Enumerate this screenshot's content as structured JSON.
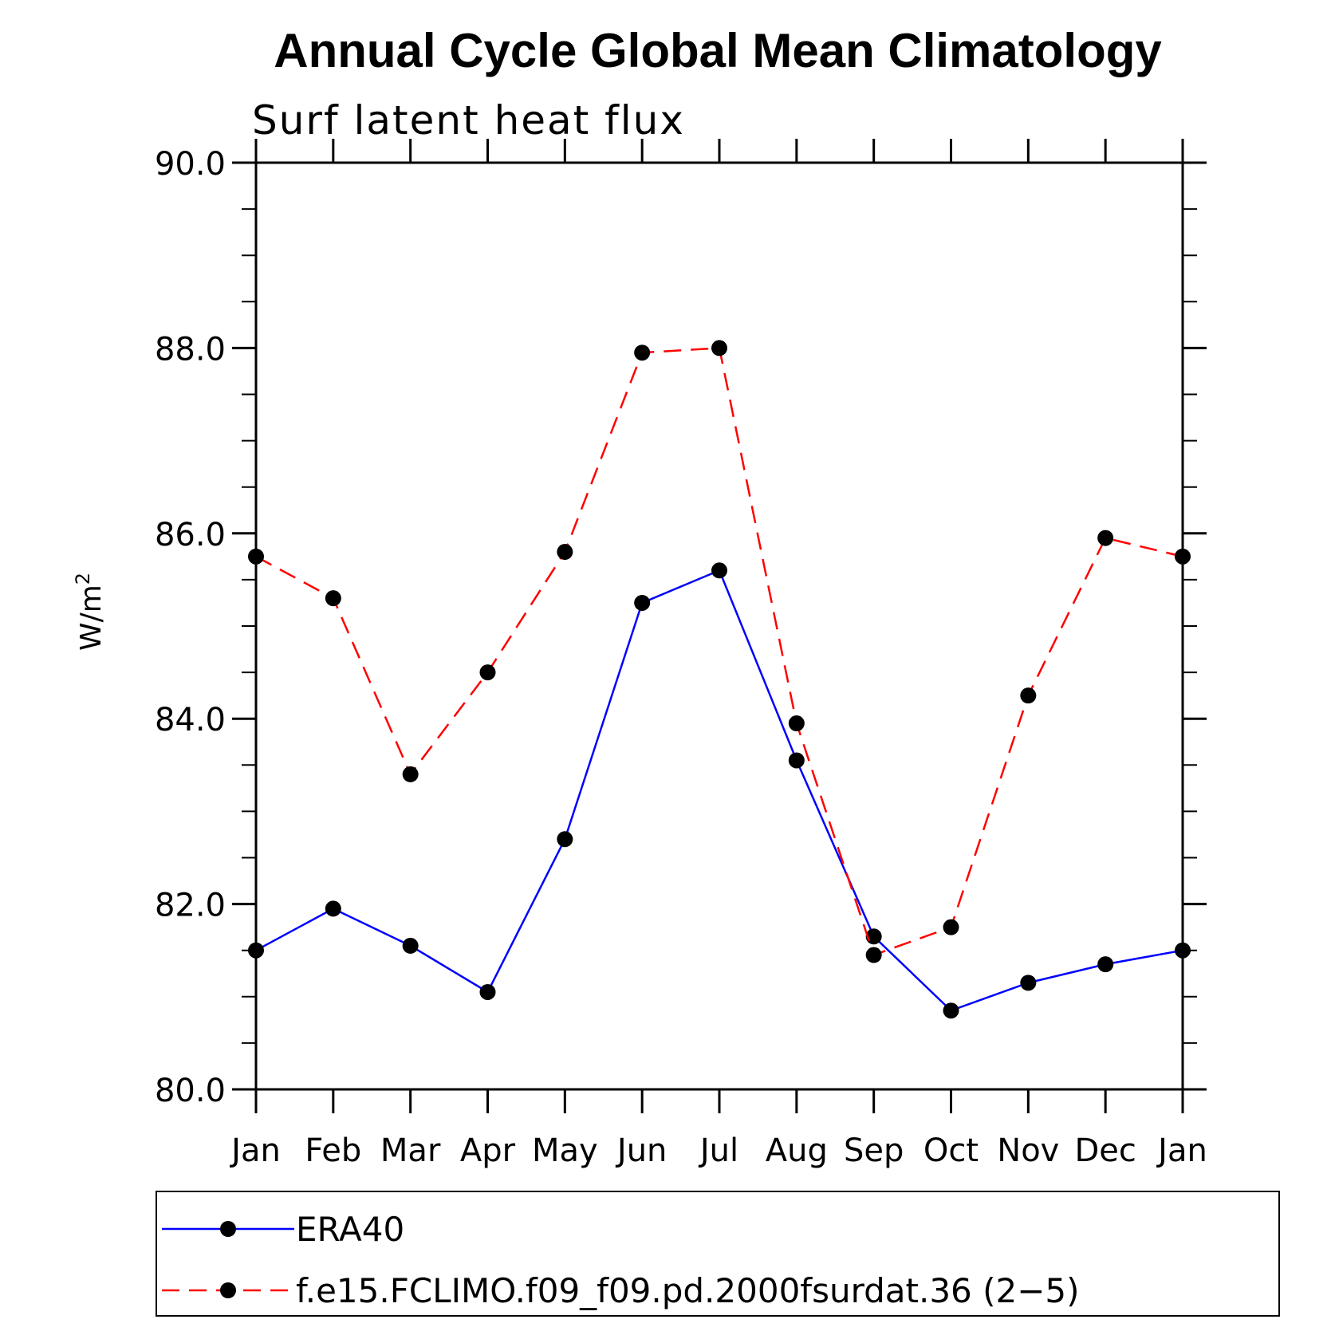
{
  "chart_data": {
    "type": "line",
    "title": "Annual Cycle Global Mean Climatology",
    "subtitle": "Surf latent heat flux",
    "xlabel": "",
    "ylabel": "W/m",
    "ylabel_sup": "2",
    "categories": [
      "Jan",
      "Feb",
      "Mar",
      "Apr",
      "May",
      "Jun",
      "Jul",
      "Aug",
      "Sep",
      "Oct",
      "Nov",
      "Dec",
      "Jan"
    ],
    "ylim": [
      80.0,
      90.0
    ],
    "yticks": [
      "80.0",
      "82.0",
      "84.0",
      "86.0",
      "88.0",
      "90.0"
    ],
    "yminor_step": 0.5,
    "grid": false,
    "legend_position": "bottom",
    "series": [
      {
        "name": "ERA40",
        "color": "#0000ff",
        "style": "solid",
        "values": [
          81.5,
          81.95,
          81.55,
          81.05,
          82.7,
          85.25,
          85.6,
          83.55,
          81.65,
          80.85,
          81.15,
          81.35,
          81.5
        ]
      },
      {
        "name": "f.e15.FCLIMO.f09_f09.pd.2000fsurdat.36 (2−5)",
        "color": "#ff0000",
        "style": "dashed",
        "values": [
          85.75,
          85.3,
          83.4,
          84.5,
          85.8,
          87.95,
          88.0,
          83.95,
          81.45,
          81.75,
          84.25,
          85.95,
          85.75
        ]
      }
    ]
  }
}
